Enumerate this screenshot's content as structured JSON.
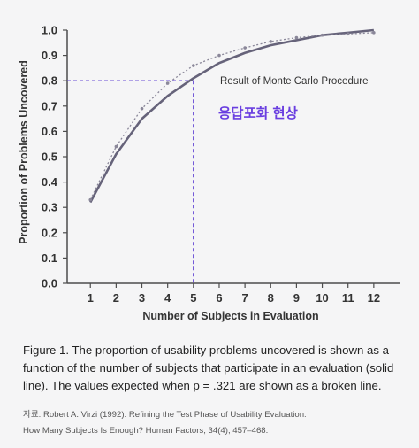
{
  "chart_data": {
    "type": "line",
    "x": [
      1,
      2,
      3,
      4,
      5,
      6,
      7,
      8,
      9,
      10,
      11,
      12
    ],
    "series": [
      {
        "name": "Result of Monte Carlo Procedure",
        "style": "solid",
        "values": [
          0.32,
          0.51,
          0.65,
          0.74,
          0.81,
          0.87,
          0.91,
          0.94,
          0.96,
          0.98,
          0.99,
          1.0
        ]
      },
      {
        "name": "",
        "style": "dotted",
        "values": [
          0.33,
          0.54,
          0.69,
          0.79,
          0.86,
          0.9,
          0.93,
          0.955,
          0.97,
          0.98,
          0.985,
          0.99
        ]
      }
    ],
    "xlabel": "Number of Subjects in Evaluation",
    "ylabel": "Proportion of Problems Uncovered",
    "xticks": [
      "1",
      "2",
      "3",
      "4",
      "5",
      "6",
      "7",
      "8",
      "9",
      "10",
      "11",
      "12"
    ],
    "yticks": [
      "0.0",
      "0.1",
      "0.2",
      "0.3",
      "0.4",
      "0.5",
      "0.6",
      "0.7",
      "0.8",
      "0.9",
      "1.0"
    ],
    "xlim": [
      0.1,
      13.0
    ],
    "ylim": [
      0,
      1.0
    ],
    "grid": false,
    "reference_lines": {
      "y": 0.8,
      "x": 5
    },
    "annotations": [
      "Result of Monte Carlo Procedure",
      "응답포화 현상"
    ],
    "colors": {
      "line": "#66637a",
      "dotted": "#8a8799",
      "reference": "#6a4fd6",
      "accent_text": "#6a3fe0",
      "axis": "#4d4d4d"
    }
  },
  "caption": {
    "lines": [
      "Figure 1. The proportion of usability problems uncovered is shown as a",
      "function of the number of subjects that participate in an evaluation (solid",
      "line). The values expected when p = .321 are shown as a broken line."
    ]
  },
  "source": {
    "line1": "자료: Robert A. Virzi (1992). Refining the Test Phase of Usability Evaluation:",
    "line2": "How Many Subjects Is Enough? Human Factors, 34(4), 457–468."
  }
}
